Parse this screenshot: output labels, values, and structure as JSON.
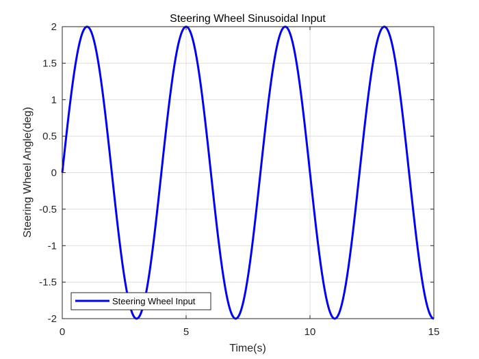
{
  "chart_data": {
    "type": "line",
    "title": "Steering Wheel Sinusoidal Input",
    "xlabel": "Time(s)",
    "ylabel": "Steering Wheel Angle(deg)",
    "xlim": [
      0,
      15
    ],
    "ylim": [
      -2,
      2
    ],
    "xticks": [
      0,
      5,
      10,
      15
    ],
    "xtick_labels": [
      "0",
      "5",
      "10",
      "15"
    ],
    "yticks": [
      -2,
      -1.5,
      -1,
      -0.5,
      0,
      0.5,
      1,
      1.5,
      2
    ],
    "ytick_labels": [
      "-2",
      "-1.5",
      "-1",
      "-0.5",
      "0",
      "0.5",
      "1",
      "1.5",
      "2"
    ],
    "grid": true,
    "legend_position": "bottom-left",
    "series": [
      {
        "name": "Steering Wheel Input",
        "color": "#0000ff",
        "amplitude": 2,
        "period": 4,
        "x_start": 0,
        "x_end": 15,
        "x": [
          0,
          1,
          2,
          3,
          4,
          5,
          6,
          7,
          8,
          9,
          10,
          11,
          12,
          13,
          14,
          15
        ],
        "y": [
          0,
          2,
          0,
          -2,
          0,
          2,
          0,
          -2,
          0,
          2,
          0,
          -2,
          0,
          2,
          0,
          -2
        ]
      }
    ]
  }
}
